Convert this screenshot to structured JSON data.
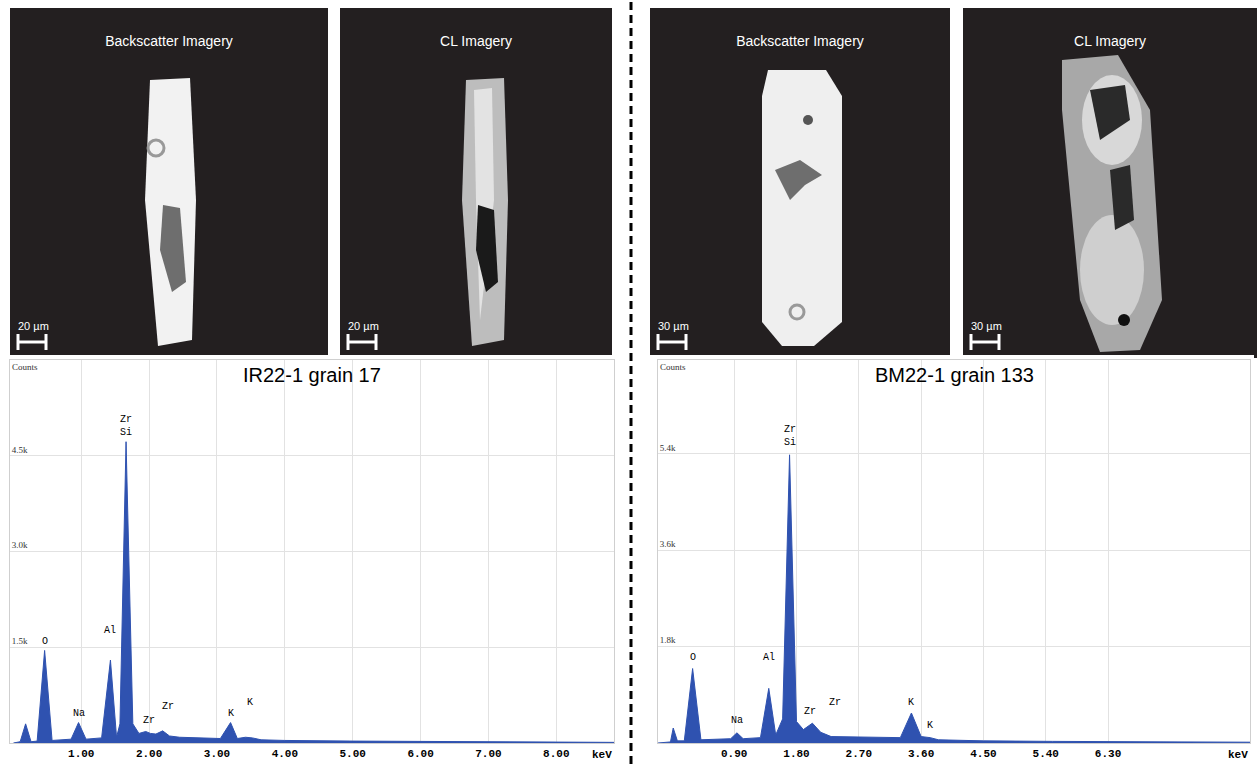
{
  "images": [
    {
      "title": "Backscatter Imagery",
      "scale_bar": "20 µm"
    },
    {
      "title": "CL Imagery",
      "scale_bar": "20 µm"
    },
    {
      "title": "Backscatter Imagery",
      "scale_bar": "30 µm"
    },
    {
      "title": "CL Imagery",
      "scale_bar": "30 µm"
    }
  ],
  "chart_data": [
    {
      "type": "area",
      "title": "IR22-1 grain 17",
      "xlabel": "keV",
      "ylabel": "Counts",
      "color": "#2f52b0",
      "grid": true,
      "x": [
        0,
        0.1,
        0.18,
        0.26,
        0.35,
        0.46,
        0.57,
        0.85,
        0.96,
        1.07,
        1.3,
        1.43,
        1.52,
        1.57,
        1.66,
        1.76,
        1.85,
        1.95,
        2.02,
        2.1,
        2.2,
        2.3,
        2.45,
        3.05,
        3.2,
        3.3,
        3.42,
        3.52,
        3.65,
        4.0,
        5.0,
        6.0,
        7.0,
        8.0,
        8.85
      ],
      "values": [
        0,
        20,
        300,
        20,
        30,
        1450,
        40,
        60,
        320,
        60,
        80,
        1300,
        90,
        300,
        4720,
        300,
        150,
        180,
        150,
        140,
        190,
        110,
        90,
        70,
        320,
        70,
        90,
        80,
        50,
        40,
        30,
        25,
        20,
        15,
        10
      ],
      "xlim": [
        -0.05,
        8.85
      ],
      "xticks": [
        {
          "value": 1,
          "label": "1.00"
        },
        {
          "value": 2,
          "label": "2.00"
        },
        {
          "value": 3,
          "label": "3.00"
        },
        {
          "value": 4,
          "label": "4.00"
        },
        {
          "value": 5,
          "label": "5.00"
        },
        {
          "value": 6,
          "label": "6.00"
        },
        {
          "value": 7,
          "label": "7.00"
        },
        {
          "value": 8,
          "label": "8.00"
        }
      ],
      "ylim": [
        0,
        6000
      ],
      "yticks": [
        {
          "value": 1500,
          "label": "1.5k"
        },
        {
          "value": 3000,
          "label": "3.0k"
        },
        {
          "value": 4500,
          "label": "4.5k"
        }
      ],
      "annotations": [
        {
          "text": "O",
          "x": 0.46,
          "y": 1470
        },
        {
          "text": "Na",
          "x": 0.96,
          "y": 340
        },
        {
          "text": "Al",
          "x": 1.43,
          "y": 1650
        },
        {
          "text": "Zr\nSi",
          "x": 1.66,
          "y": 4740
        },
        {
          "text": "Zr",
          "x": 2.0,
          "y": 230
        },
        {
          "text": "Zr",
          "x": 2.28,
          "y": 450
        },
        {
          "text": "K",
          "x": 3.2,
          "y": 340
        },
        {
          "text": "K",
          "x": 3.48,
          "y": 520
        }
      ]
    },
    {
      "type": "area",
      "title": "BM22-1 grain 133",
      "xlabel": "keV",
      "ylabel": "Counts",
      "color": "#2f52b0",
      "grid": true,
      "x": [
        -0.2,
        -0.02,
        0.02,
        0.08,
        0.18,
        0.3,
        0.42,
        0.85,
        0.94,
        1.03,
        1.28,
        1.4,
        1.5,
        1.6,
        1.7,
        1.8,
        1.9,
        2.03,
        2.15,
        2.3,
        3.3,
        3.46,
        3.6,
        3.73,
        3.85,
        4.5,
        5.5,
        6.5,
        7.5,
        8.35
      ],
      "values": [
        0,
        20,
        280,
        40,
        40,
        1390,
        60,
        80,
        190,
        80,
        100,
        1020,
        150,
        450,
        5380,
        400,
        250,
        370,
        200,
        120,
        100,
        560,
        120,
        100,
        60,
        40,
        30,
        25,
        20,
        15
      ],
      "xlim": [
        -0.2,
        8.35
      ],
      "xticks": [
        {
          "value": 0.9,
          "label": "0.90"
        },
        {
          "value": 1.8,
          "label": "1.80"
        },
        {
          "value": 2.7,
          "label": "2.70"
        },
        {
          "value": 3.6,
          "label": "3.60"
        },
        {
          "value": 4.5,
          "label": "4.50"
        },
        {
          "value": 5.4,
          "label": "5.40"
        },
        {
          "value": 6.3,
          "label": "6.30"
        }
      ],
      "ylim": [
        0,
        7150
      ],
      "yticks": [
        {
          "value": 1800,
          "label": "1.8k"
        },
        {
          "value": 3600,
          "label": "3.6k"
        },
        {
          "value": 5400,
          "label": "5.4k"
        }
      ],
      "annotations": [
        {
          "text": "O",
          "x": 0.3,
          "y": 1450
        },
        {
          "text": "Na",
          "x": 0.94,
          "y": 280
        },
        {
          "text": "Al",
          "x": 1.4,
          "y": 1450
        },
        {
          "text": "Zr\nSi",
          "x": 1.7,
          "y": 5470
        },
        {
          "text": "Zr",
          "x": 2.0,
          "y": 450
        },
        {
          "text": "Zr",
          "x": 2.36,
          "y": 620
        },
        {
          "text": "K",
          "x": 3.46,
          "y": 610
        },
        {
          "text": "K",
          "x": 3.73,
          "y": 185
        }
      ]
    }
  ]
}
